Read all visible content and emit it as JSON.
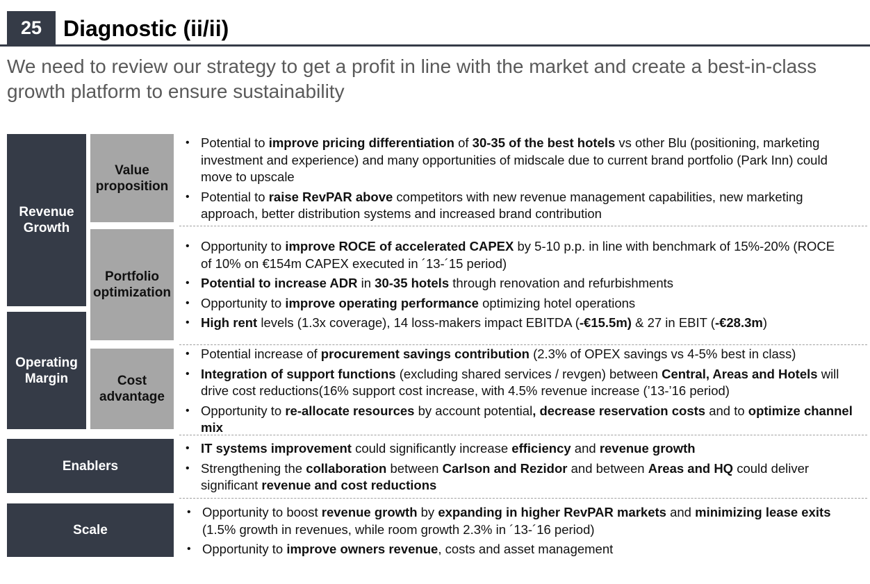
{
  "header": {
    "page_number": "25",
    "title": "Diagnostic (ii/ii)",
    "subtitle": "We need to review our strategy to get a profit in line with the market and create a best-in-class growth platform to ensure sustainability"
  },
  "categories": {
    "revenue_growth": "Revenue Growth",
    "operating_margin": "Operating Margin",
    "value_proposition": "Value proposition",
    "portfolio_optimization": "Portfolio optimization",
    "cost_advantage": "Cost advantage",
    "enablers": "Enablers",
    "scale": "Scale"
  },
  "sections": {
    "value_proposition": [
      [
        [
          "Potential to ",
          false
        ],
        [
          "improve pricing differentiation",
          true
        ],
        [
          " of ",
          false
        ],
        [
          "30-35 of the best hotels",
          true
        ],
        [
          " vs other Blu (positioning, marketing investment and experience) and many opportunities of midscale due to current brand portfolio (Park Inn) could move to upscale",
          false
        ]
      ],
      [
        [
          "Potential to ",
          false
        ],
        [
          "raise RevPAR above",
          true
        ],
        [
          " competitors with new revenue management capabilities, new marketing approach, better distribution systems and increased brand contribution",
          false
        ]
      ]
    ],
    "portfolio_optimization": [
      [
        [
          "Opportunity to ",
          false
        ],
        [
          "improve ROCE of accelerated CAPEX",
          true
        ],
        [
          " by 5-10 p.p. in line with benchmark of 15%-20% (ROCE of 10% on €154m CAPEX executed in ´13-´15 period)",
          false
        ]
      ],
      [
        [
          "Potential to increase ADR",
          true
        ],
        [
          " in ",
          false
        ],
        [
          "30-35 hotels",
          true
        ],
        [
          " through renovation and refurbishments",
          false
        ]
      ],
      [
        [
          "Opportunity to ",
          false
        ],
        [
          "improve operating performance",
          true
        ],
        [
          " optimizing hotel operations",
          false
        ]
      ],
      [
        [
          "High rent",
          true
        ],
        [
          " levels (1.3x coverage), 14 loss-makers impact EBITDA (",
          false
        ],
        [
          "-€15.5m)",
          true
        ],
        [
          " & 27 in EBIT (",
          false
        ],
        [
          "-€28.3m",
          true
        ],
        [
          ")",
          false
        ]
      ]
    ],
    "cost_advantage": [
      [
        [
          "Potential increase of ",
          false
        ],
        [
          "procurement savings contribution",
          true
        ],
        [
          " (2.3% of OPEX savings vs 4-5% best in class)",
          false
        ]
      ],
      [
        [
          "Integration of support functions",
          true
        ],
        [
          " (excluding shared services / revgen) between ",
          false
        ],
        [
          "Central, Areas and Hotels",
          true
        ],
        [
          " will drive cost reductions(16% support cost increase, with 4.5% revenue increase (’13-’16 period)",
          false
        ]
      ],
      [
        [
          "Opportunity to ",
          false
        ],
        [
          "re-allocate resources",
          true
        ],
        [
          " by account potential",
          false
        ],
        [
          ", decrease reservation costs",
          true
        ],
        [
          " and to ",
          false
        ],
        [
          "optimize channel mix",
          true
        ]
      ]
    ],
    "enablers": [
      [
        [
          "IT systems improvement",
          true
        ],
        [
          " could significantly increase ",
          false
        ],
        [
          "efficiency",
          true
        ],
        [
          " and ",
          false
        ],
        [
          "revenue growth",
          true
        ]
      ],
      [
        [
          "Strengthening the ",
          false
        ],
        [
          "collaboration",
          true
        ],
        [
          " between ",
          false
        ],
        [
          "Carlson and Rezidor",
          true
        ],
        [
          " and between ",
          false
        ],
        [
          "Areas and HQ",
          true
        ],
        [
          " could deliver significant ",
          false
        ],
        [
          "revenue and cost reductions",
          true
        ]
      ]
    ],
    "scale": [
      [
        [
          "Opportunity to boost ",
          false
        ],
        [
          "revenue growth",
          true
        ],
        [
          " by ",
          false
        ],
        [
          "expanding in higher RevPAR markets",
          true
        ],
        [
          " and ",
          false
        ],
        [
          "minimizing lease exits",
          true
        ],
        [
          " (1.5% growth in revenues, while room growth 2.3% in ´13-´16 period)",
          false
        ]
      ],
      [
        [
          "Opportunity to ",
          false
        ],
        [
          "improve owners revenue",
          true
        ],
        [
          ", costs and asset management",
          false
        ]
      ]
    ]
  }
}
